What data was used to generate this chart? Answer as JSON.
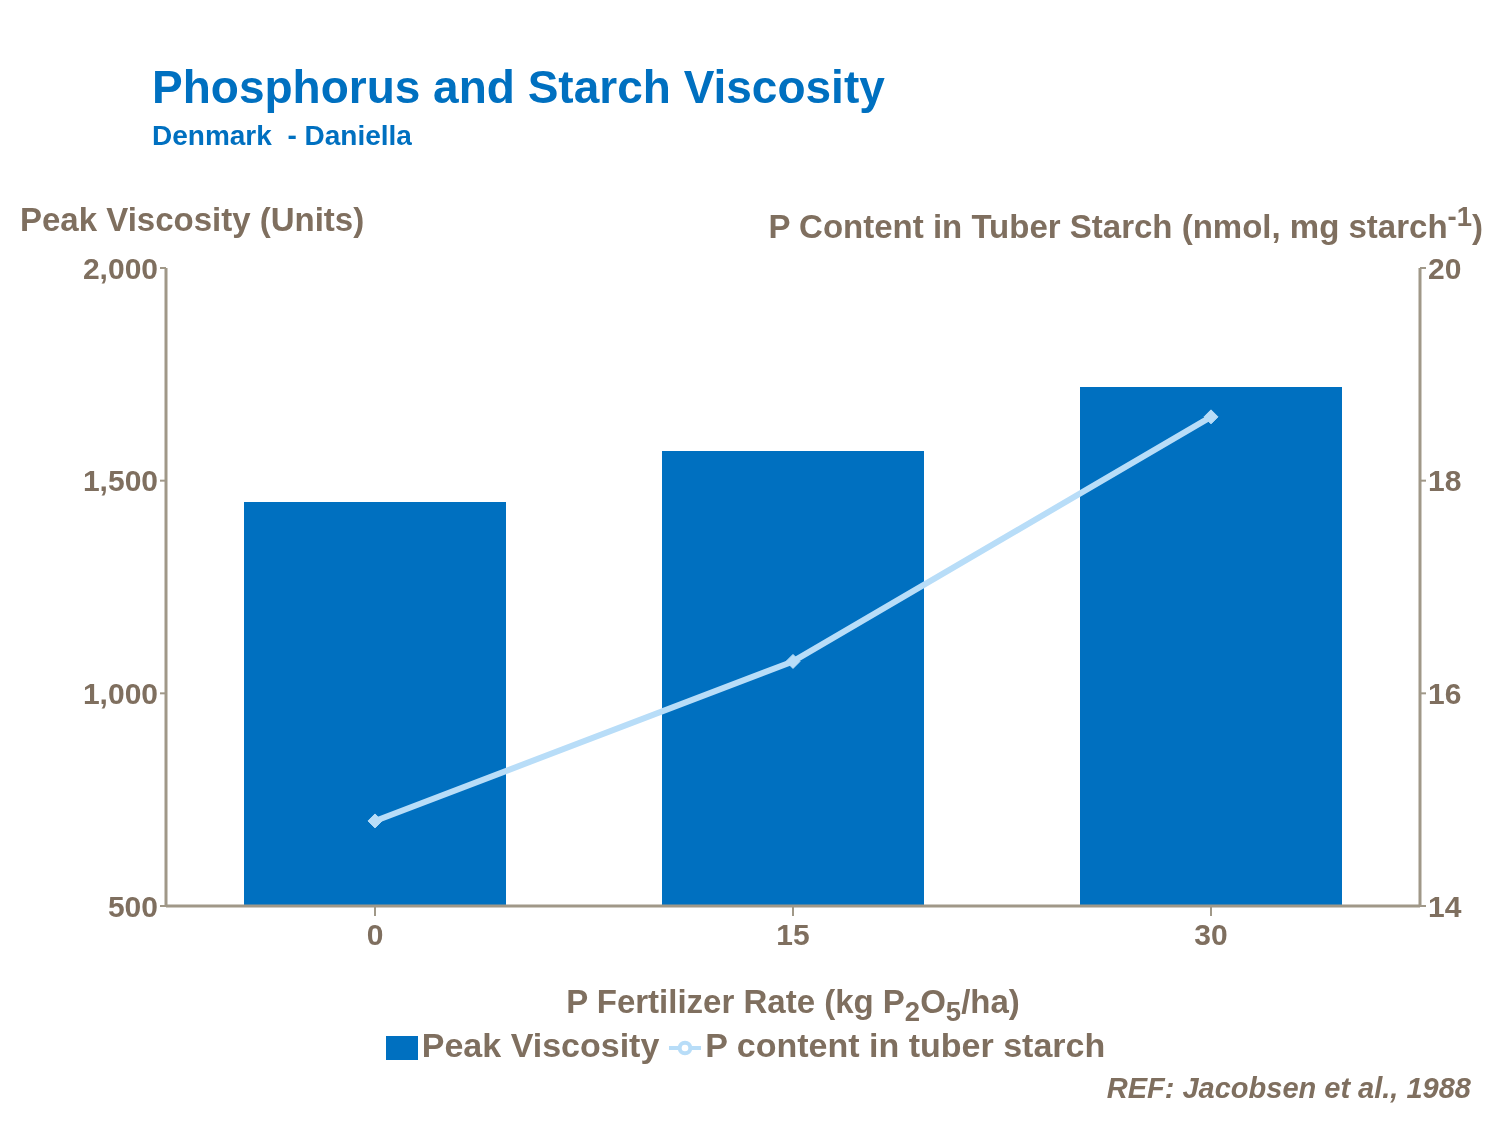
{
  "chart_data": {
    "type": "bar",
    "title": "Phosphorus and Starch Viscosity",
    "subtitle": "Denmark  - Daniella",
    "ylabel": "Peak Viscosity (Units)",
    "y2label": "P Content in Tuber Starch (nmol, mg starch$^{-1}$)",
    "xlabel": "P Fertilizer Rate (kg P$_{2}$O$_{5}$/ha)",
    "categories": [
      "0",
      "15",
      "30"
    ],
    "series": [
      {
        "name": "Peak Viscosity",
        "color": "#0070c0",
        "values": [
          1450,
          1570,
          1720
        ]
      },
      {
        "name": "P content in tuber starch",
        "type": "line",
        "axis": "y2",
        "color": "#b8ddf8",
        "marker": "diamond",
        "values": [
          14.8,
          16.3,
          18.6
        ]
      }
    ],
    "ylim": [
      500,
      2000
    ],
    "yticks": [
      {
        "value": 500,
        "label": "500"
      },
      {
        "value": 1000,
        "label": "1,000"
      },
      {
        "value": 1500,
        "label": "1,500"
      },
      {
        "value": 2000,
        "label": "2,000"
      }
    ],
    "y2lim": [
      14,
      20
    ],
    "y2ticks": [
      14,
      16,
      18,
      20
    ],
    "grid": false,
    "legend": "bottom",
    "annotations": [
      "REF: Jacobsen et al., 1988"
    ]
  }
}
